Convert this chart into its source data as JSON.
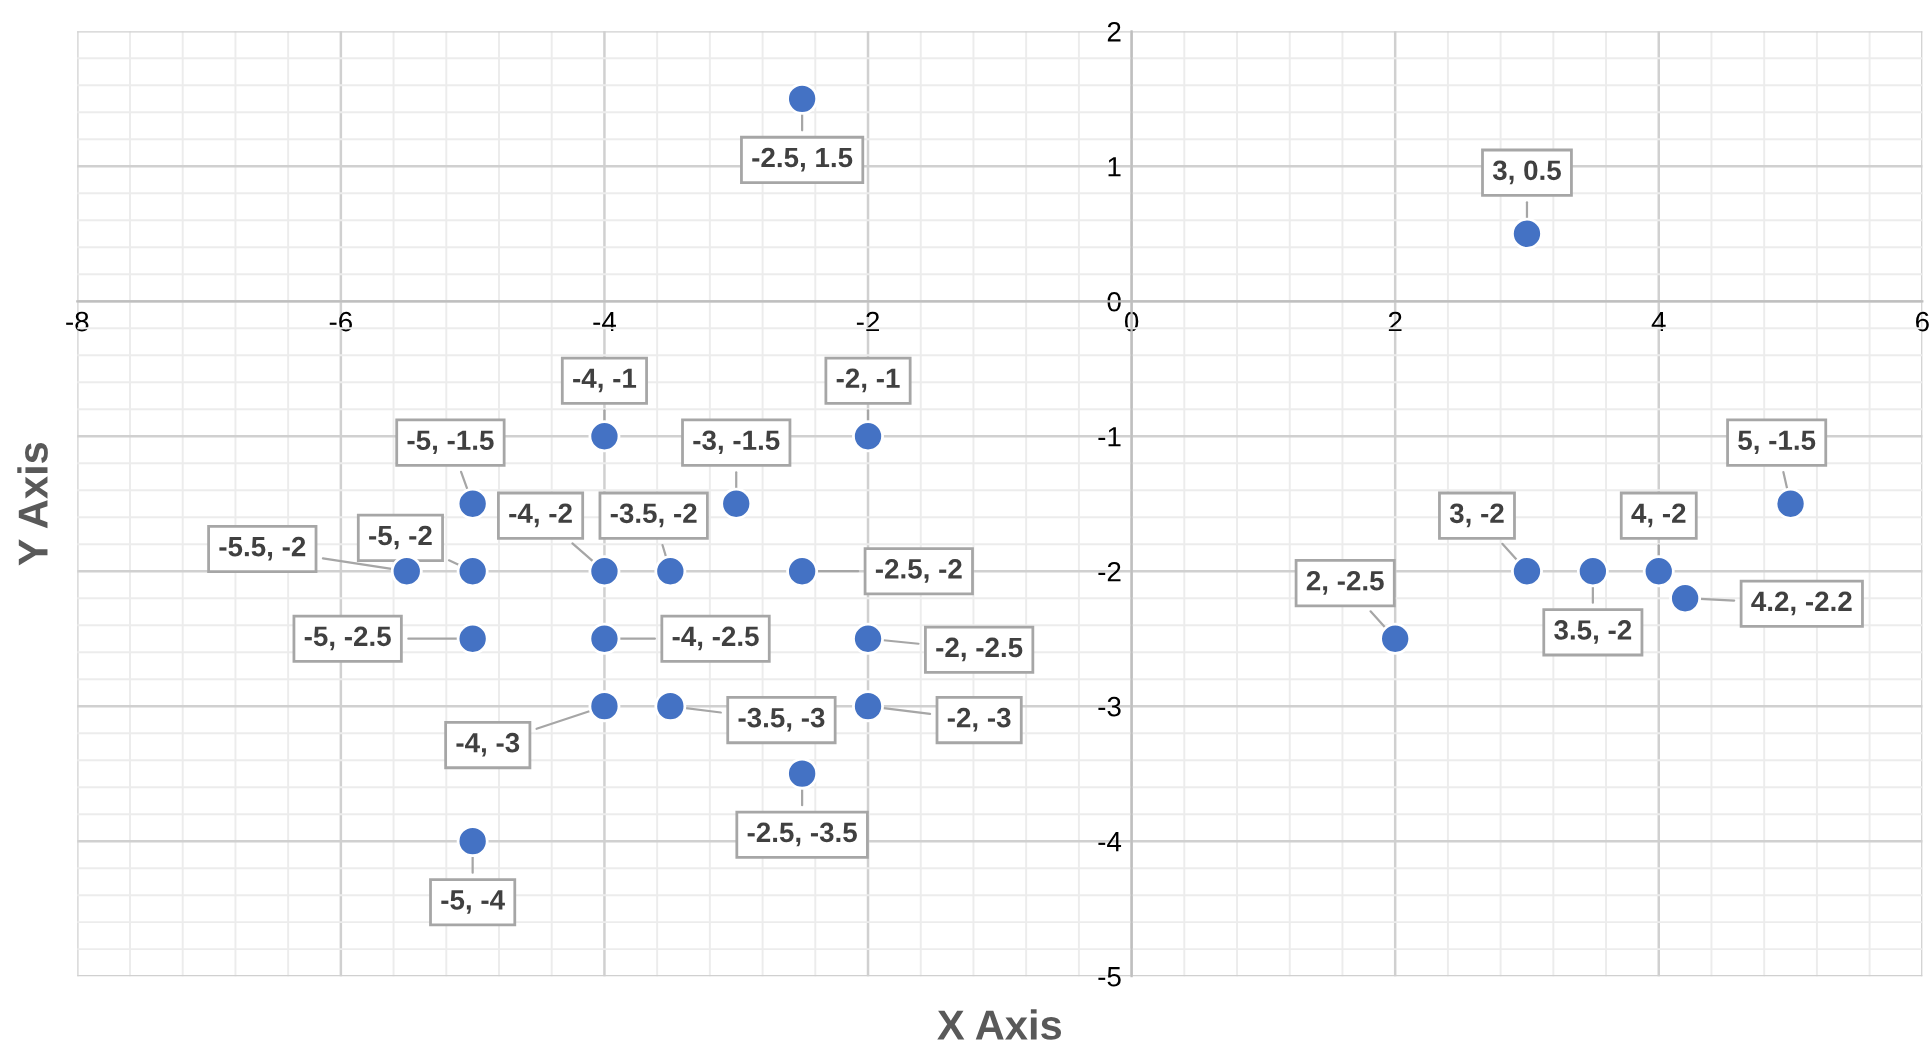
{
  "chart_data": {
    "type": "scatter",
    "xlabel": "X Axis",
    "ylabel": "Y Axis",
    "xlim": [
      -8,
      6
    ],
    "ylim": [
      -5,
      2
    ],
    "xticks": [
      -8,
      -6,
      -4,
      -2,
      0,
      2,
      4,
      6
    ],
    "yticks": [
      -5,
      -4,
      -3,
      -2,
      -1,
      0,
      1,
      2
    ],
    "grid": true,
    "marker": "circle",
    "series": [
      {
        "color": "#4472c4",
        "x": [
          -2.5,
          3,
          -4,
          -2,
          -5,
          -3,
          5,
          -5.5,
          -5,
          -4,
          -3.5,
          -2.5,
          3,
          3.5,
          4,
          4.2,
          2,
          -5,
          -4,
          -2,
          -4,
          -3.5,
          -2,
          -2.5,
          -5
        ],
        "values": [
          1.5,
          0.5,
          -1,
          -1,
          -1.5,
          -1.5,
          -1.5,
          -2,
          -2,
          -2,
          -2,
          -2,
          -2,
          -2,
          -2,
          -2.2,
          -2.5,
          -2.5,
          -2.5,
          -2.5,
          -3,
          -3,
          -3,
          -3.5,
          -4
        ],
        "value_labels": [
          "-2.5, 1.5",
          "3, 0.5",
          "-4, -1",
          "-2, -1",
          "-5, -1.5",
          "-3, -1.5",
          "5, -1.5",
          "-5.5, -2",
          "-5, -2",
          "-4, -2",
          "-3.5, -2",
          "-2.5, -2",
          "3, -2",
          "3.5, -2",
          "4, -2",
          "4.2, -2.2",
          "2, -2.5",
          "-5, -2.5",
          "-4, -2.5",
          "-2, -2.5",
          "-4, -3",
          "-3.5, -3",
          "-2, -3",
          "-2.5, -3.5",
          "-5, -4"
        ]
      }
    ]
  }
}
